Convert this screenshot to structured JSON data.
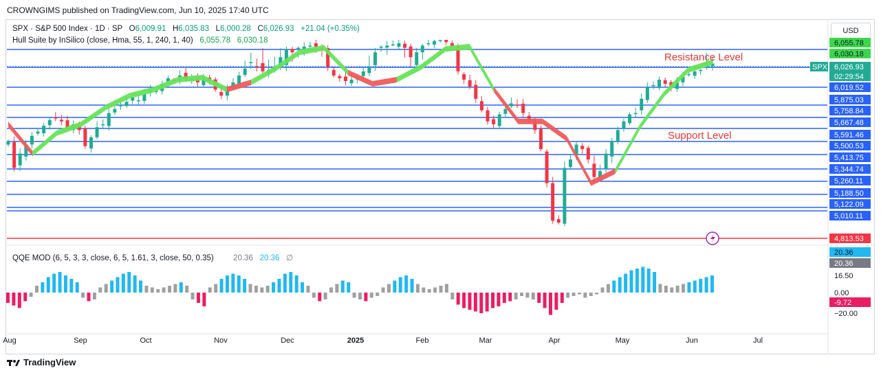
{
  "publisher": "CROWNGIMS published on TradingView.com, Jun 10, 2025 17:40 UTC",
  "currency_button": "USD",
  "brand": "TradingView",
  "legend": {
    "symbol": "SPX · S&P 500 Index · 1D · SP",
    "o_label": "O",
    "o_value": "6,009.91",
    "h_label": "H",
    "h_value": "6,035.83",
    "l_label": "L",
    "l_value": "6,000.28",
    "c_label": "C",
    "c_value": "6,026.93",
    "change": "+21.04 (+0.35%)",
    "hull_name": "Hull Suite by InSilico (close, Hma, 55, 1, 240, 1, 40)",
    "hull_v1": "6,055.78",
    "hull_v2": "6,030.18"
  },
  "qqe_legend": {
    "name": "QQE MOD (6, 5, 3, 3, close, 6, 5, 1.61, 3, close, 50, 0.35)",
    "v1": "20.36",
    "v2": "20.36",
    "icon": "null-icon"
  },
  "annotations": {
    "resistance": "Resistance Level",
    "support": "Support Level",
    "symbol_tag": "SPX",
    "countdown": "02:29:54"
  },
  "colors": {
    "up": "#22ab94",
    "down": "#f23645",
    "level_line": "#2962ff",
    "hull_green": "#66e35a",
    "hull_red": "#f05a5a",
    "qqe_blue": "#22b8f0",
    "qqe_pink": "#e91e63",
    "qqe_gray": "#a0a0a0",
    "annotation_red": "#e53935"
  },
  "chart_data": {
    "type": "candlestick",
    "x_labels": [
      "Aug",
      "Sep",
      "Oct",
      "Nov",
      "Dec",
      "2025",
      "Feb",
      "Mar",
      "Apr",
      "May",
      "Jun",
      "Jul"
    ],
    "price_axis_labels": [
      "6,055.78",
      "6,030.18",
      "6,026.93",
      "6,019.52",
      "5,875.03",
      "5,758.84",
      "5,667.48",
      "5,591.46",
      "5,500.53",
      "5,413.75",
      "5,344.74",
      "5,260.11",
      "5,188.50",
      "5,122.09",
      "5,010.11",
      "4,813.53"
    ],
    "horizontal_levels": [
      6055.78,
      6019.52,
      5875.03,
      5758.84,
      5667.48,
      5591.46,
      5500.53,
      5413.75,
      5344.74,
      5260.11,
      5188.5,
      5122.09,
      5010.11
    ],
    "red_level": 4813.53,
    "last_price": 6026.93,
    "indicator_axis_labels": [
      "20.36",
      "20.36",
      "16.50",
      "0.00",
      "-9.72",
      "−20.00"
    ],
    "hull_path": [
      [
        0,
        5620
      ],
      [
        4,
        5420
      ],
      [
        8,
        5560
      ],
      [
        12,
        5620
      ],
      [
        16,
        5740
      ],
      [
        20,
        5820
      ],
      [
        24,
        5860
      ],
      [
        28,
        5930
      ],
      [
        32,
        5945
      ],
      [
        36,
        5860
      ],
      [
        40,
        5910
      ],
      [
        44,
        6010
      ],
      [
        48,
        6050
      ],
      [
        52,
        6070
      ],
      [
        56,
        5980
      ],
      [
        60,
        5900
      ],
      [
        64,
        5930
      ],
      [
        68,
        6020
      ],
      [
        72,
        6060
      ],
      [
        76,
        6080
      ],
      [
        80,
        5860
      ],
      [
        84,
        5640
      ],
      [
        88,
        5640
      ],
      [
        92,
        5520
      ],
      [
        96,
        5250
      ],
      [
        100,
        5330
      ],
      [
        104,
        5600
      ],
      [
        108,
        5830
      ],
      [
        112,
        6000
      ],
      [
        116,
        6030
      ]
    ],
    "hull_colors": [
      "red",
      "green",
      "green",
      "green",
      "green",
      "green",
      "green",
      "green",
      "green",
      "red",
      "green",
      "green",
      "green",
      "green",
      "red",
      "red",
      "green",
      "green",
      "green",
      "green",
      "red",
      "red",
      "red",
      "red",
      "red",
      "green",
      "green",
      "green",
      "green",
      "green"
    ],
    "candles": [
      5500,
      5350,
      5420,
      5480,
      5540,
      5570,
      5610,
      5650,
      5660,
      5640,
      5600,
      5620,
      5580,
      5470,
      5530,
      5600,
      5620,
      5700,
      5730,
      5760,
      5780,
      5810,
      5790,
      5830,
      5860,
      5850,
      5900,
      5940,
      5920,
      5960,
      5930,
      5940,
      5910,
      5950,
      5920,
      5860,
      5820,
      5860,
      5910,
      5960,
      6010,
      6030,
      6020,
      5990,
      6000,
      6010,
      6040,
      6060,
      6050,
      6070,
      6080,
      6090,
      6080,
      6060,
      6020,
      5960,
      5940,
      5920,
      5930,
      5940,
      5990,
      6020,
      6050,
      6080,
      6090,
      6100,
      6110,
      6070,
      6040,
      6050,
      6090,
      6110,
      6130,
      6140,
      6120,
      6080,
      5990,
      5930,
      5880,
      5800,
      5720,
      5640,
      5620,
      5690,
      5730,
      5770,
      5760,
      5700,
      5650,
      5580,
      5450,
      5250,
      5000,
      4980,
      5350,
      5390,
      5480,
      5450,
      5390,
      5290,
      5330,
      5420,
      5500,
      5580,
      5640,
      5690,
      5700,
      5800,
      5880,
      5890,
      5930,
      5900,
      5880,
      5910,
      5950,
      5970,
      5990,
      6000,
      6030,
      6027
    ],
    "qqe_histogram": [
      -12,
      -15,
      -18,
      -10,
      -5,
      8,
      12,
      18,
      22,
      24,
      20,
      16,
      12,
      -6,
      -10,
      -8,
      6,
      10,
      14,
      18,
      22,
      24,
      20,
      14,
      8,
      6,
      4,
      6,
      8,
      10,
      12,
      8,
      -8,
      -12,
      -16,
      6,
      10,
      16,
      20,
      22,
      20,
      16,
      10,
      8,
      6,
      8,
      12,
      16,
      22,
      24,
      20,
      12,
      8,
      -6,
      -10,
      -8,
      6,
      10,
      14,
      12,
      -6,
      -8,
      -10,
      -6,
      -4,
      6,
      10,
      14,
      18,
      20,
      16,
      10,
      6,
      4,
      6,
      8,
      10,
      -8,
      -14,
      -18,
      -20,
      -22,
      -24,
      -22,
      -18,
      -16,
      -12,
      -10,
      -8,
      -4,
      -6,
      -8,
      -12,
      -18,
      -26,
      -20,
      -12,
      -6,
      -4,
      -2,
      -6,
      -4,
      -2,
      6,
      10,
      14,
      18,
      22,
      26,
      28,
      30,
      28,
      24,
      10,
      8,
      6,
      8,
      10,
      12,
      14,
      16,
      18,
      20
    ]
  }
}
